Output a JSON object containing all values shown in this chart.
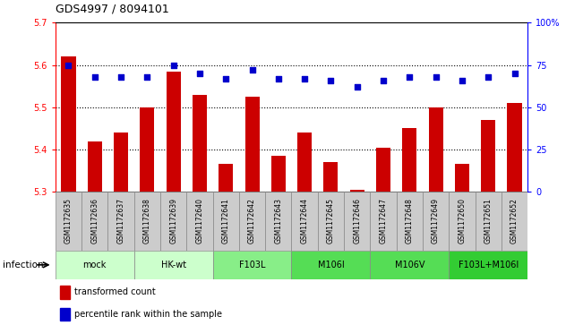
{
  "title": "GDS4997 / 8094101",
  "samples": [
    "GSM1172635",
    "GSM1172636",
    "GSM1172637",
    "GSM1172638",
    "GSM1172639",
    "GSM1172640",
    "GSM1172641",
    "GSM1172642",
    "GSM1172643",
    "GSM1172644",
    "GSM1172645",
    "GSM1172646",
    "GSM1172647",
    "GSM1172648",
    "GSM1172649",
    "GSM1172650",
    "GSM1172651",
    "GSM1172652"
  ],
  "bar_values": [
    5.62,
    5.42,
    5.44,
    5.5,
    5.585,
    5.53,
    5.365,
    5.525,
    5.385,
    5.44,
    5.37,
    5.305,
    5.405,
    5.45,
    5.5,
    5.365,
    5.47,
    5.51
  ],
  "percentile_values": [
    75,
    68,
    68,
    68,
    75,
    70,
    67,
    72,
    67,
    67,
    66,
    62,
    66,
    68,
    68,
    66,
    68,
    70
  ],
  "bar_color": "#cc0000",
  "dot_color": "#0000cc",
  "ylim_left": [
    5.3,
    5.7
  ],
  "ylim_right": [
    0,
    100
  ],
  "yticks_left": [
    5.3,
    5.4,
    5.5,
    5.6,
    5.7
  ],
  "yticks_right": [
    0,
    25,
    50,
    75,
    100
  ],
  "ytick_labels_right": [
    "0",
    "25",
    "50",
    "75",
    "100%"
  ],
  "grid_lines": [
    5.4,
    5.5,
    5.6
  ],
  "groups": [
    {
      "label": "mock",
      "start": 0,
      "end": 2,
      "color": "#ccffcc"
    },
    {
      "label": "HK-wt",
      "start": 3,
      "end": 5,
      "color": "#ccffcc"
    },
    {
      "label": "F103L",
      "start": 6,
      "end": 8,
      "color": "#88ee88"
    },
    {
      "label": "M106I",
      "start": 9,
      "end": 11,
      "color": "#55dd55"
    },
    {
      "label": "M106V",
      "start": 12,
      "end": 14,
      "color": "#55dd55"
    },
    {
      "label": "F103L+M106I",
      "start": 15,
      "end": 17,
      "color": "#33cc33"
    }
  ],
  "infection_label": "infection",
  "legend_bar_label": "transformed count",
  "legend_dot_label": "percentile rank within the sample",
  "sample_box_color": "#cccccc",
  "sample_box_edge": "#999999"
}
